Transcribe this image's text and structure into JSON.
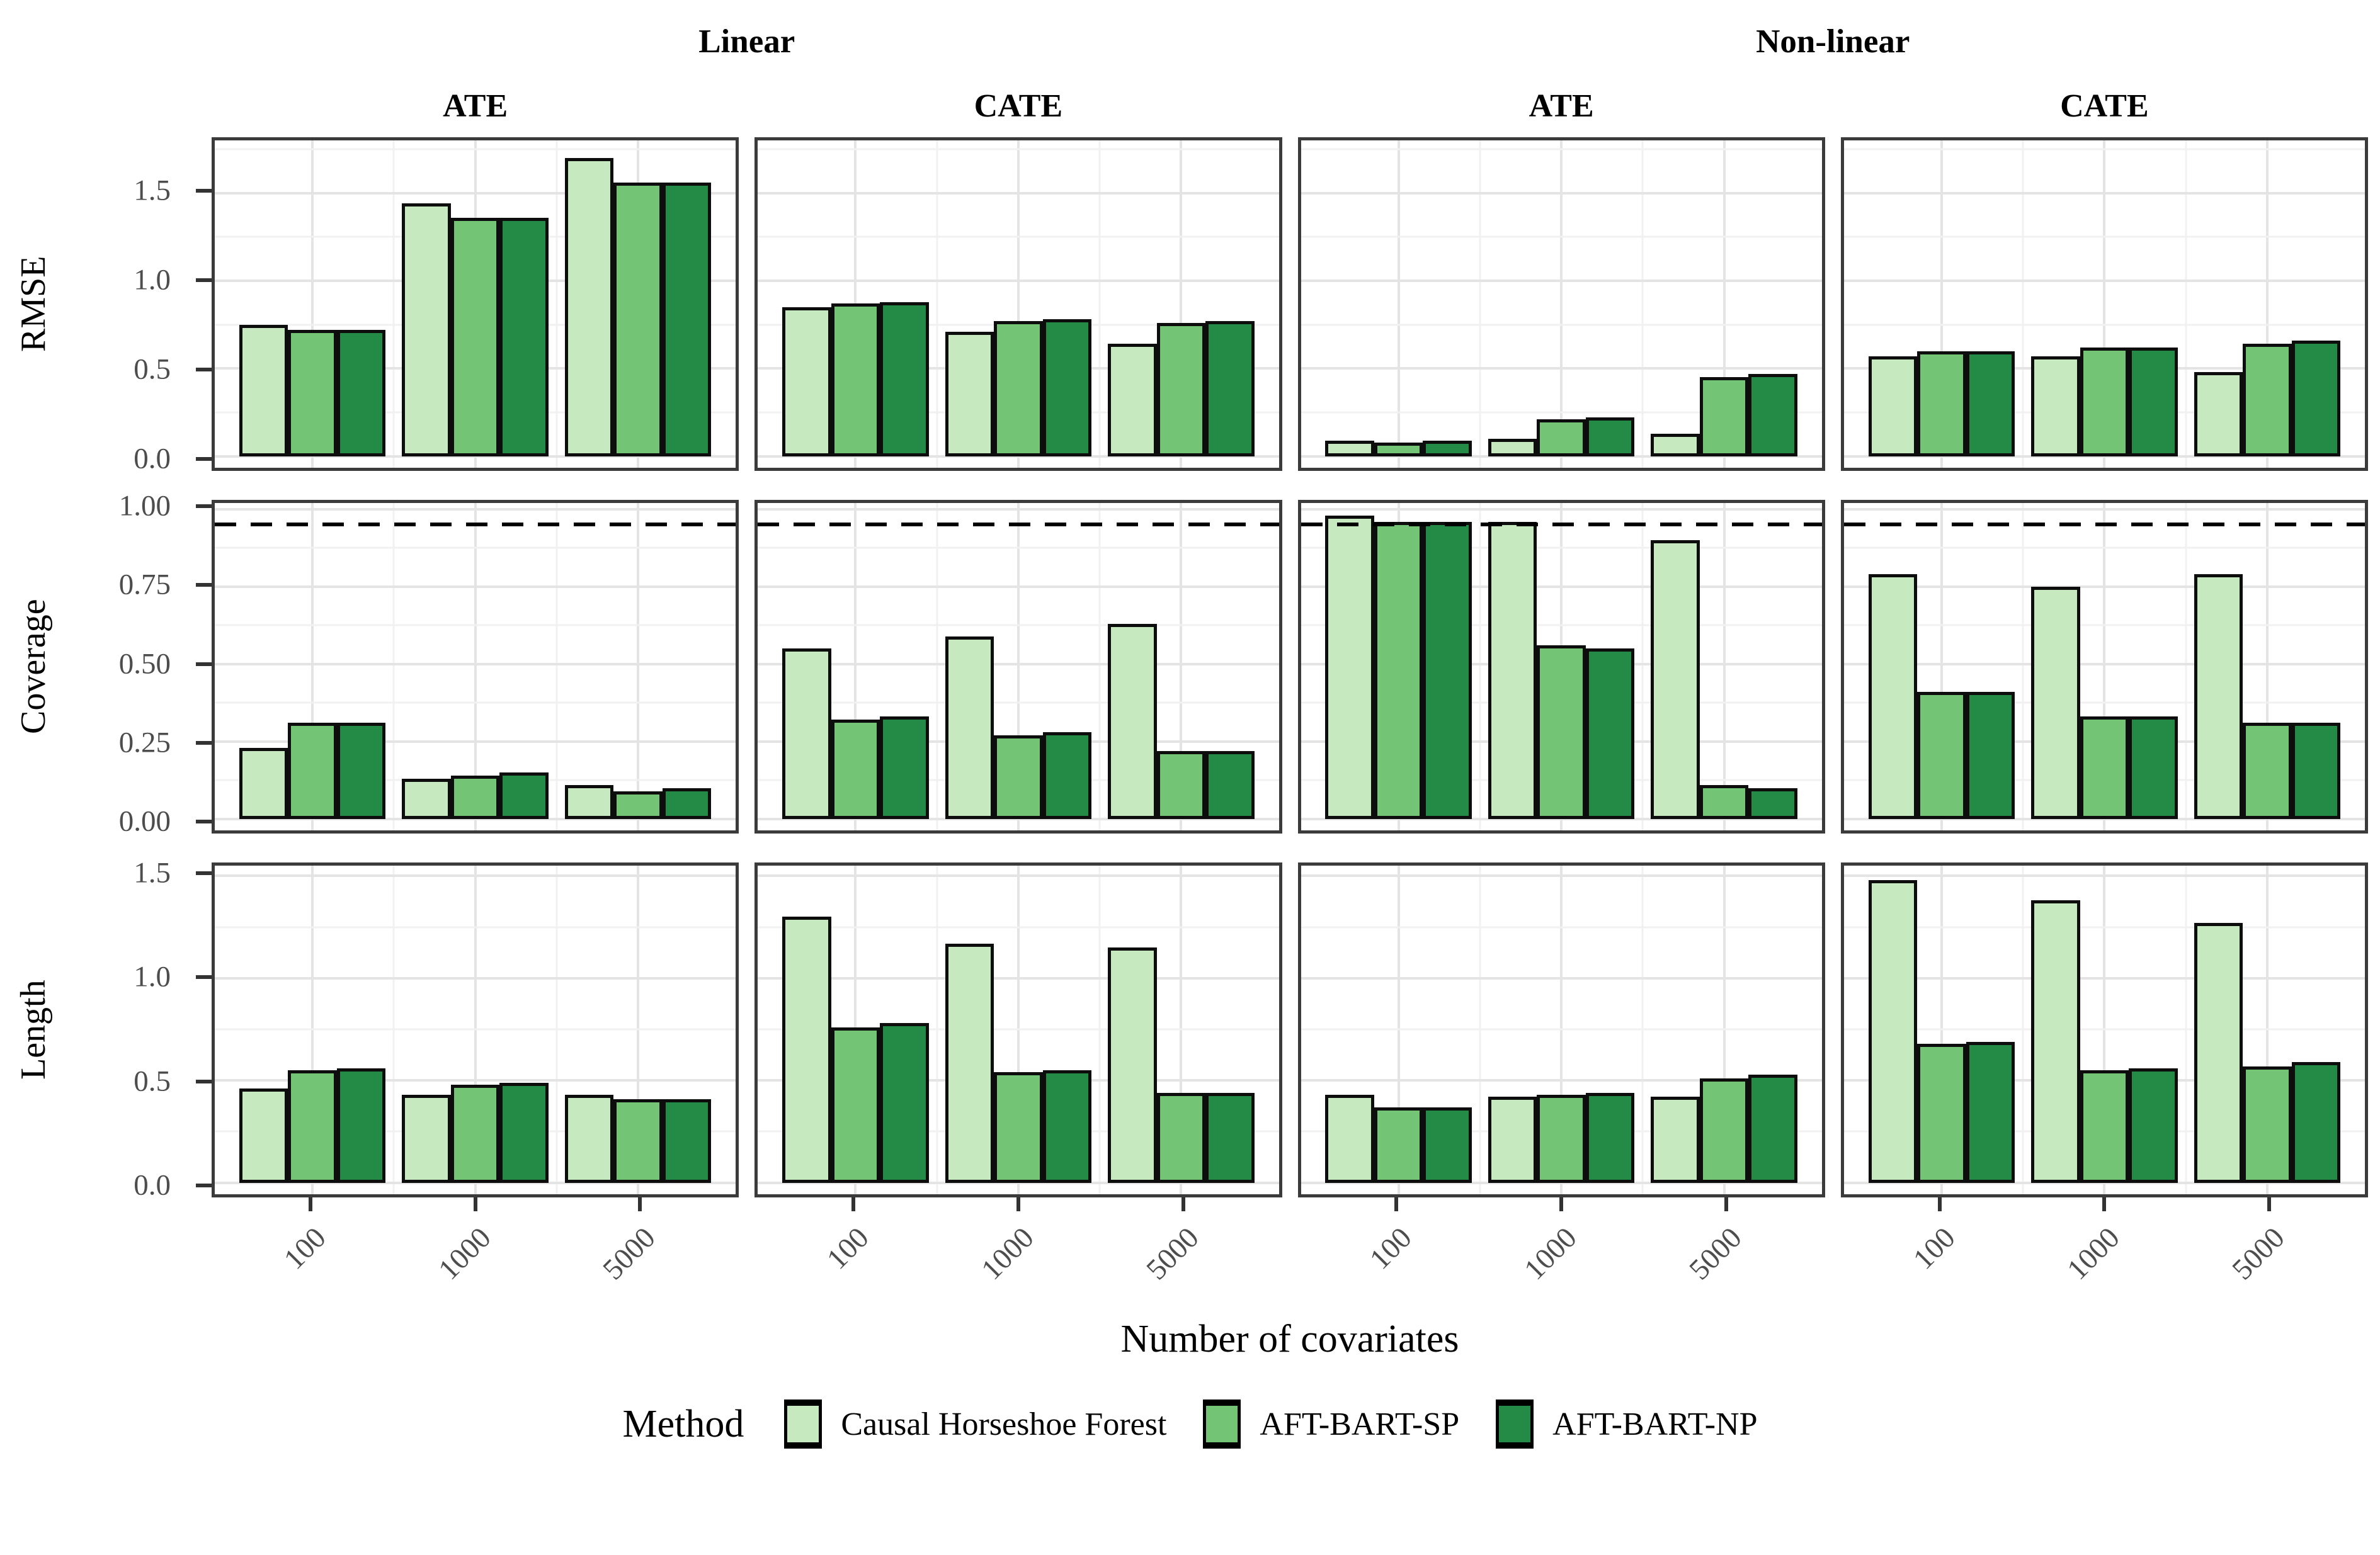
{
  "figure": {
    "col_group_headers": [
      "Linear",
      "Non-linear"
    ],
    "col_headers": [
      "ATE",
      "CATE",
      "ATE",
      "CATE"
    ],
    "row_labels": [
      "RMSE",
      "Coverage",
      "Length"
    ],
    "x_axis_title": "Number of covariates",
    "categories": [
      "100",
      "1000",
      "5000"
    ],
    "legend": {
      "title": "Method",
      "items": [
        {
          "label": "Causal Horseshoe Forest",
          "color": "#c7e9c0"
        },
        {
          "label": "AFT-BART-SP",
          "color": "#74c476"
        },
        {
          "label": "AFT-BART-NP",
          "color": "#238b45"
        }
      ]
    },
    "colors": {
      "panel_border": "#3b3b3b",
      "bar_stroke": "#0d0d0d",
      "grid_major": "#e4e4e4",
      "grid_minor": "#f1f1f1",
      "tick_text": "#4d4d4d",
      "ref_line": "#000000"
    }
  },
  "chart_data": {
    "type": "bar",
    "layout": "facet-grid 3 rows (metrics) x 4 cols (Linear ATE, Linear CATE, Non-linear ATE, Non-linear CATE), grouped bars by method, x = number of covariates",
    "categories": [
      "100",
      "1000",
      "5000"
    ],
    "series_names": [
      "Causal Horseshoe Forest",
      "AFT-BART-SP",
      "AFT-BART-NP"
    ],
    "legend_position": "bottom",
    "grid": "on",
    "rows": [
      {
        "label": "RMSE",
        "ymax": 1.8,
        "ticks": [
          {
            "v": 0,
            "t": "0.0"
          },
          {
            "v": 0.5,
            "t": "0.5"
          },
          {
            "v": 1.0,
            "t": "1.0"
          },
          {
            "v": 1.5,
            "t": "1.5"
          }
        ],
        "minor": [
          0.25,
          0.75,
          1.25,
          1.75
        ],
        "ref_line": null,
        "panels": [
          {
            "facet": "Linear ATE",
            "groups": [
              [
                0.75,
                0.72,
                0.72
              ],
              [
                1.44,
                1.36,
                1.36
              ],
              [
                1.7,
                1.56,
                1.56
              ]
            ]
          },
          {
            "facet": "Linear CATE",
            "groups": [
              [
                0.85,
                0.87,
                0.88
              ],
              [
                0.71,
                0.77,
                0.78
              ],
              [
                0.64,
                0.76,
                0.77
              ]
            ]
          },
          {
            "facet": "Non-linear ATE",
            "groups": [
              [
                0.09,
                0.08,
                0.09
              ],
              [
                0.1,
                0.21,
                0.22
              ],
              [
                0.13,
                0.45,
                0.47
              ]
            ]
          },
          {
            "facet": "Non-linear CATE",
            "groups": [
              [
                0.57,
                0.6,
                0.6
              ],
              [
                0.57,
                0.62,
                0.62
              ],
              [
                0.48,
                0.64,
                0.66
              ]
            ]
          }
        ]
      },
      {
        "label": "Coverage",
        "ymax": 1.02,
        "ticks": [
          {
            "v": 0,
            "t": "0.00"
          },
          {
            "v": 0.25,
            "t": "0.25"
          },
          {
            "v": 0.5,
            "t": "0.50"
          },
          {
            "v": 0.75,
            "t": "0.75"
          },
          {
            "v": 1.0,
            "t": "1.00"
          }
        ],
        "minor": [
          0.125,
          0.375,
          0.625,
          0.875
        ],
        "ref_line": 0.95,
        "panels": [
          {
            "facet": "Linear ATE",
            "groups": [
              [
                0.23,
                0.31,
                0.31
              ],
              [
                0.13,
                0.14,
                0.15
              ],
              [
                0.11,
                0.09,
                0.1
              ]
            ]
          },
          {
            "facet": "Linear CATE",
            "groups": [
              [
                0.55,
                0.32,
                0.33
              ],
              [
                0.59,
                0.27,
                0.28
              ],
              [
                0.63,
                0.22,
                0.22
              ]
            ]
          },
          {
            "facet": "Non-linear ATE",
            "groups": [
              [
                0.98,
                0.96,
                0.96
              ],
              [
                0.96,
                0.56,
                0.55
              ],
              [
                0.9,
                0.11,
                0.1
              ]
            ]
          },
          {
            "facet": "Non-linear CATE",
            "groups": [
              [
                0.79,
                0.41,
                0.41
              ],
              [
                0.75,
                0.33,
                0.33
              ],
              [
                0.79,
                0.31,
                0.31
              ]
            ]
          }
        ]
      },
      {
        "label": "Length",
        "ymax": 1.55,
        "ticks": [
          {
            "v": 0,
            "t": "0.0"
          },
          {
            "v": 0.5,
            "t": "0.5"
          },
          {
            "v": 1.0,
            "t": "1.0"
          },
          {
            "v": 1.5,
            "t": "1.5"
          }
        ],
        "minor": [
          0.25,
          0.75,
          1.25
        ],
        "ref_line": null,
        "panels": [
          {
            "facet": "Linear ATE",
            "groups": [
              [
                0.46,
                0.55,
                0.56
              ],
              [
                0.43,
                0.48,
                0.49
              ],
              [
                0.43,
                0.41,
                0.41
              ]
            ]
          },
          {
            "facet": "Linear CATE",
            "groups": [
              [
                1.3,
                0.76,
                0.78
              ],
              [
                1.17,
                0.54,
                0.55
              ],
              [
                1.15,
                0.44,
                0.44
              ]
            ]
          },
          {
            "facet": "Non-linear ATE",
            "groups": [
              [
                0.43,
                0.37,
                0.37
              ],
              [
                0.42,
                0.43,
                0.44
              ],
              [
                0.42,
                0.51,
                0.53
              ]
            ]
          },
          {
            "facet": "Non-linear CATE",
            "groups": [
              [
                1.48,
                0.68,
                0.69
              ],
              [
                1.38,
                0.55,
                0.56
              ],
              [
                1.27,
                0.57,
                0.59
              ]
            ]
          }
        ]
      }
    ]
  }
}
